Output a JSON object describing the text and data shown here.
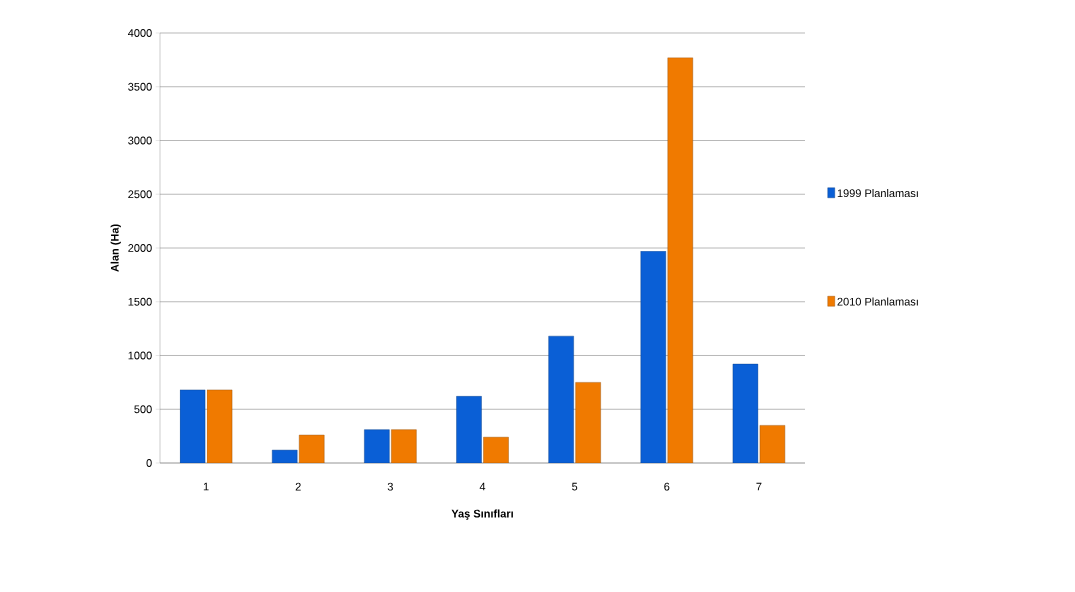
{
  "chart_data": {
    "type": "bar",
    "xlabel": "Yaş Sınıfları",
    "ylabel": "Alan (Ha)",
    "categories": [
      "1",
      "2",
      "3",
      "4",
      "5",
      "6",
      "7"
    ],
    "series": [
      {
        "name": "1999 Planlaması",
        "color": "#0a5fd6",
        "values": [
          680,
          120,
          310,
          620,
          1180,
          1970,
          920
        ]
      },
      {
        "name": "2010 Planlaması",
        "color": "#f07a00",
        "values": [
          680,
          260,
          310,
          240,
          750,
          3770,
          350
        ]
      }
    ],
    "ylim": [
      0,
      4000
    ],
    "yticks": [
      0,
      500,
      1000,
      1500,
      2000,
      2500,
      3000,
      3500,
      4000
    ],
    "grid": "y",
    "legend": "right"
  }
}
